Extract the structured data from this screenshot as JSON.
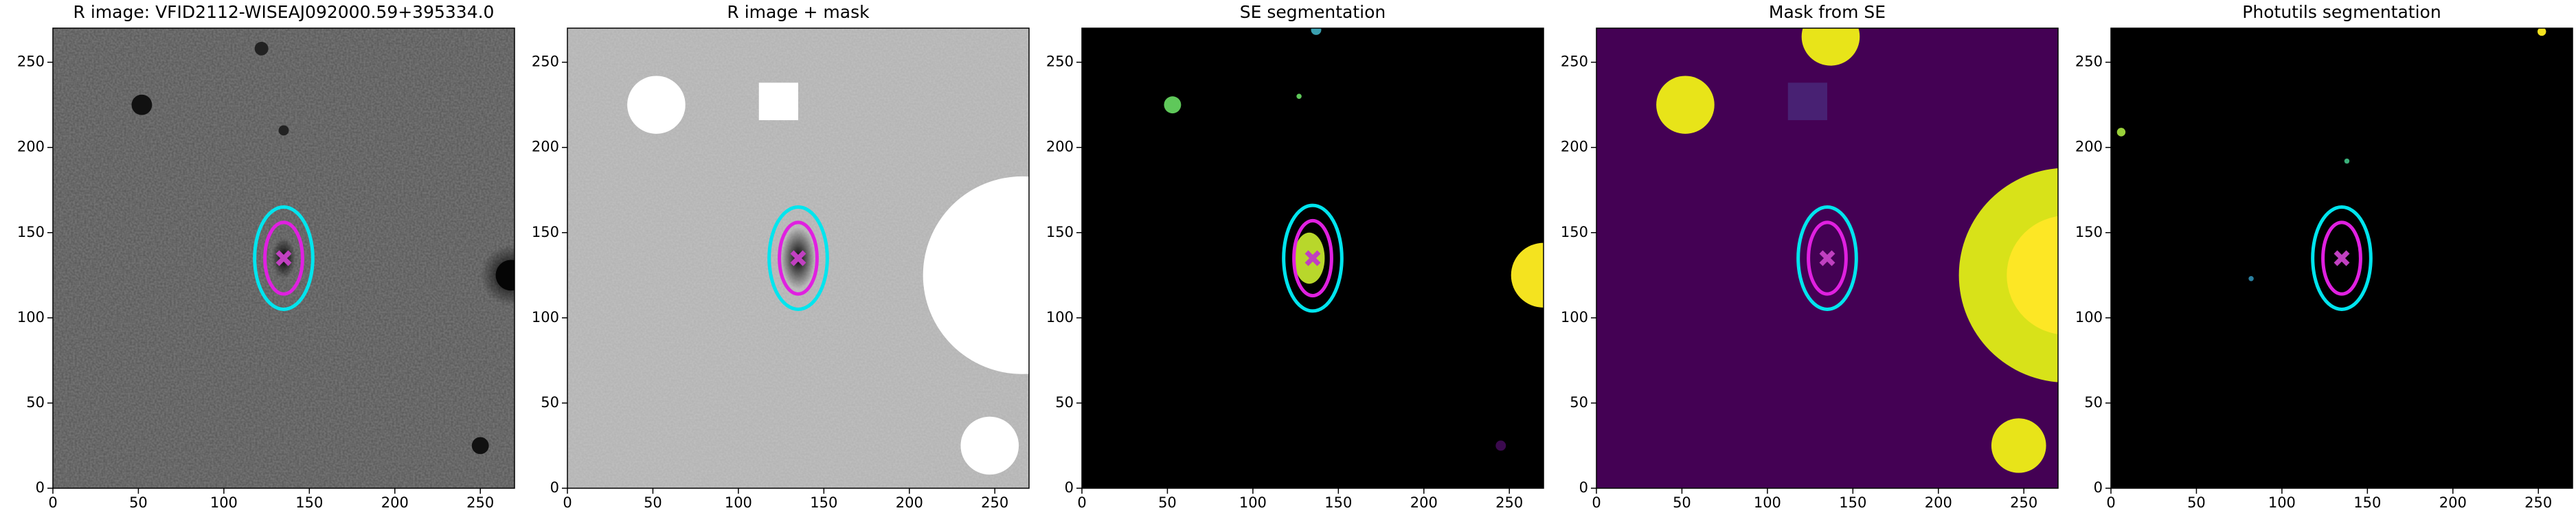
{
  "chart_data": [
    {
      "type": "image",
      "title": "R image: VFID2112-WISEAJ092000.59+395334.0",
      "xlim": [
        0,
        270
      ],
      "ylim": [
        0,
        270
      ],
      "xticks": [
        0,
        50,
        100,
        150,
        200,
        250
      ],
      "yticks": [
        0,
        50,
        100,
        150,
        200,
        250
      ],
      "ellipses": [
        {
          "cx": 135,
          "cy": 135,
          "rx": 17,
          "ry": 30,
          "color": "#00e5ee"
        },
        {
          "cx": 135,
          "cy": 135,
          "rx": 11,
          "ry": 21,
          "color": "#e020e0"
        }
      ],
      "marker": {
        "x": 135,
        "y": 135,
        "color": "#c040c0"
      }
    },
    {
      "type": "image",
      "title": "R image + mask",
      "xlim": [
        0,
        270
      ],
      "ylim": [
        0,
        270
      ],
      "xticks": [
        0,
        50,
        100,
        150,
        200,
        250
      ],
      "yticks": [
        0,
        50,
        100,
        150,
        200,
        250
      ],
      "ellipses": [
        {
          "cx": 135,
          "cy": 135,
          "rx": 17,
          "ry": 30,
          "color": "#00e5ee"
        },
        {
          "cx": 135,
          "cy": 135,
          "rx": 11,
          "ry": 21,
          "color": "#e020e0"
        }
      ],
      "marker": {
        "x": 135,
        "y": 135,
        "color": "#c040c0"
      }
    },
    {
      "type": "image",
      "title": "SE segmentation",
      "xlim": [
        0,
        270
      ],
      "ylim": [
        0,
        270
      ],
      "xticks": [
        0,
        50,
        100,
        150,
        200,
        250
      ],
      "yticks": [
        0,
        50,
        100,
        150,
        200,
        250
      ],
      "ellipses": [
        {
          "cx": 135,
          "cy": 135,
          "rx": 17,
          "ry": 31,
          "color": "#00e5ee"
        },
        {
          "cx": 135,
          "cy": 135,
          "rx": 11,
          "ry": 22,
          "color": "#e020e0"
        }
      ],
      "marker": {
        "x": 135,
        "y": 135,
        "color": "#c040c0"
      }
    },
    {
      "type": "image",
      "title": "Mask from SE",
      "xlim": [
        0,
        270
      ],
      "ylim": [
        0,
        270
      ],
      "xticks": [
        0,
        50,
        100,
        150,
        200,
        250
      ],
      "yticks": [
        0,
        50,
        100,
        150,
        200,
        250
      ],
      "ellipses": [
        {
          "cx": 135,
          "cy": 135,
          "rx": 17,
          "ry": 30,
          "color": "#00e5ee"
        },
        {
          "cx": 135,
          "cy": 135,
          "rx": 11,
          "ry": 21,
          "color": "#e020e0"
        }
      ],
      "marker": {
        "x": 135,
        "y": 135,
        "color": "#c040c0"
      }
    },
    {
      "type": "image",
      "title": "Photutils segmentation",
      "xlim": [
        0,
        270
      ],
      "ylim": [
        0,
        270
      ],
      "xticks": [
        0,
        50,
        100,
        150,
        200,
        250
      ],
      "yticks": [
        0,
        50,
        100,
        150,
        200,
        250
      ],
      "ellipses": [
        {
          "cx": 135,
          "cy": 135,
          "rx": 17,
          "ry": 30,
          "color": "#00e5ee"
        },
        {
          "cx": 135,
          "cy": 135,
          "rx": 11,
          "ry": 21,
          "color": "#e020e0"
        }
      ],
      "marker": {
        "x": 135,
        "y": 135,
        "color": "#c040c0"
      }
    }
  ]
}
